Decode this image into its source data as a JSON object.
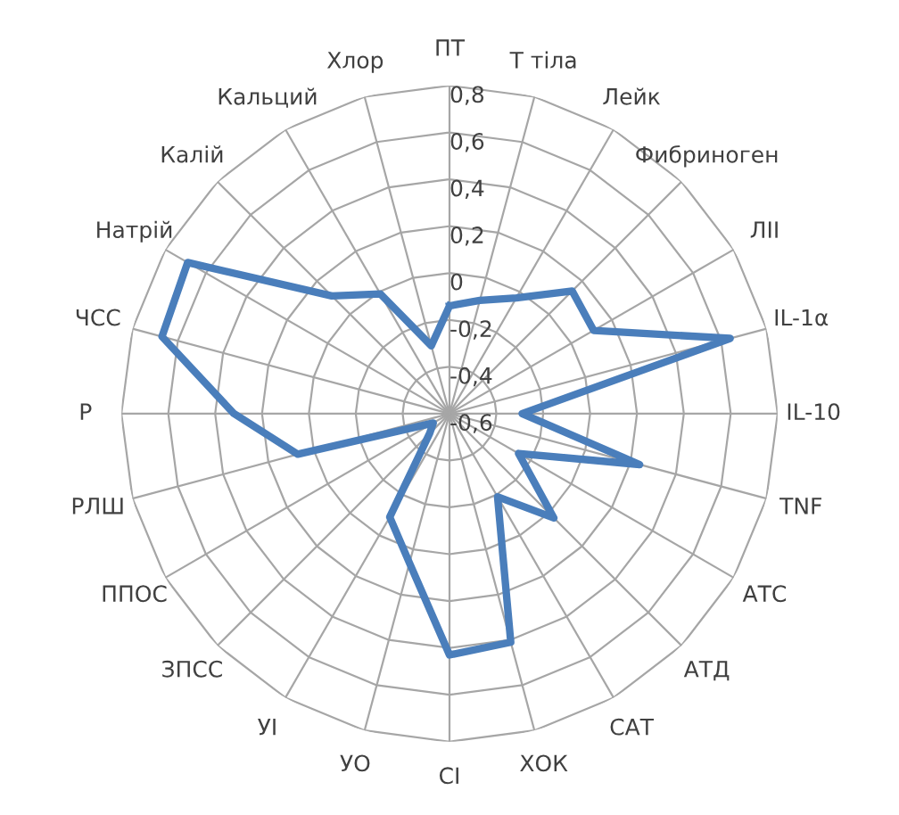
{
  "chart_data": {
    "type": "radar",
    "categories": [
      "ПТ",
      "Т тіла",
      "Лейк",
      "Фибриноген",
      "ЛІІ",
      "IL-1α",
      "IL-10",
      "TNF",
      "АТС",
      "АТД",
      "САТ",
      "ХОК",
      "СІ",
      "УО",
      "УІ",
      "ЗПСС",
      "ППОС",
      "РЛШ",
      "Р",
      "ЧСС",
      "Натрій",
      "Калій",
      "Кальций",
      "Хлор"
    ],
    "series": [
      {
        "color": "#4a7ebb",
        "values": [
          -0.14,
          -0.1,
          -0.03,
          0.14,
          0.11,
          0.64,
          -0.29,
          0.24,
          -0.26,
          0.03,
          -0.19,
          0.41,
          0.43,
          0.06,
          -0.09,
          -0.48,
          -0.52,
          0.07,
          0.32,
          0.67,
          0.69,
          0.11,
          -0.01,
          -0.3
        ]
      }
    ],
    "ylim": [
      -0.6,
      0.8
    ],
    "yticks": [
      {
        "value": -0.6,
        "label": "-0,6"
      },
      {
        "value": -0.4,
        "label": "-0,4"
      },
      {
        "value": -0.2,
        "label": "-0,2"
      },
      0,
      {
        "value": 0.2,
        "label": "0,2"
      },
      {
        "value": 0.4,
        "label": "0,4"
      },
      {
        "value": 0.6,
        "label": "0,6"
      },
      {
        "value": 0.8,
        "label": "0,8"
      }
    ],
    "grid": true,
    "marker": "none",
    "line_style": "solid"
  }
}
